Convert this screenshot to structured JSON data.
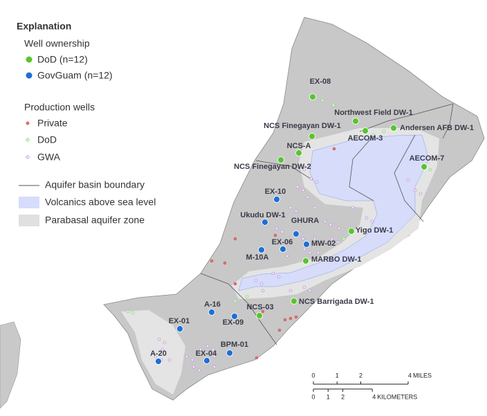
{
  "legend": {
    "title": "Explanation",
    "ownership": {
      "title": "Well ownership",
      "dod": "DoD (n=12)",
      "govguam": "GovGuam (n=12)"
    },
    "production": {
      "title": "Production wells",
      "items": [
        "Private",
        "DoD",
        "GWA"
      ]
    },
    "features": [
      "Aquifer basin boundary",
      "Volcanics above sea level",
      "Parabasal aquifer zone"
    ]
  },
  "dod_wells": [
    "EX-08",
    "Northwest Field DW-1",
    "NCS Finegayan DW-1",
    "AECOM-3",
    "Andersen AFB DW-1",
    "NCS-A",
    "AECOM-7",
    "NCS Finegayan DW-2",
    "Yigo DW-1",
    "MARBO DW-1",
    "NCS Barrigada DW-1",
    "NCS-03"
  ],
  "govguam_wells": [
    "EX-10",
    "Ukudu DW-1",
    "GHURA",
    "EX-06",
    "MW-02",
    "M-10A",
    "A-16",
    "EX-09",
    "EX-01",
    "BPM-01",
    "EX-04",
    "A-20"
  ],
  "scale": {
    "miles": {
      "ticks": [
        0,
        1,
        2,
        4
      ],
      "unit": "MILES"
    },
    "kilometers": {
      "ticks": [
        0,
        1,
        2,
        4
      ],
      "unit": "KILOMETERS"
    }
  }
}
